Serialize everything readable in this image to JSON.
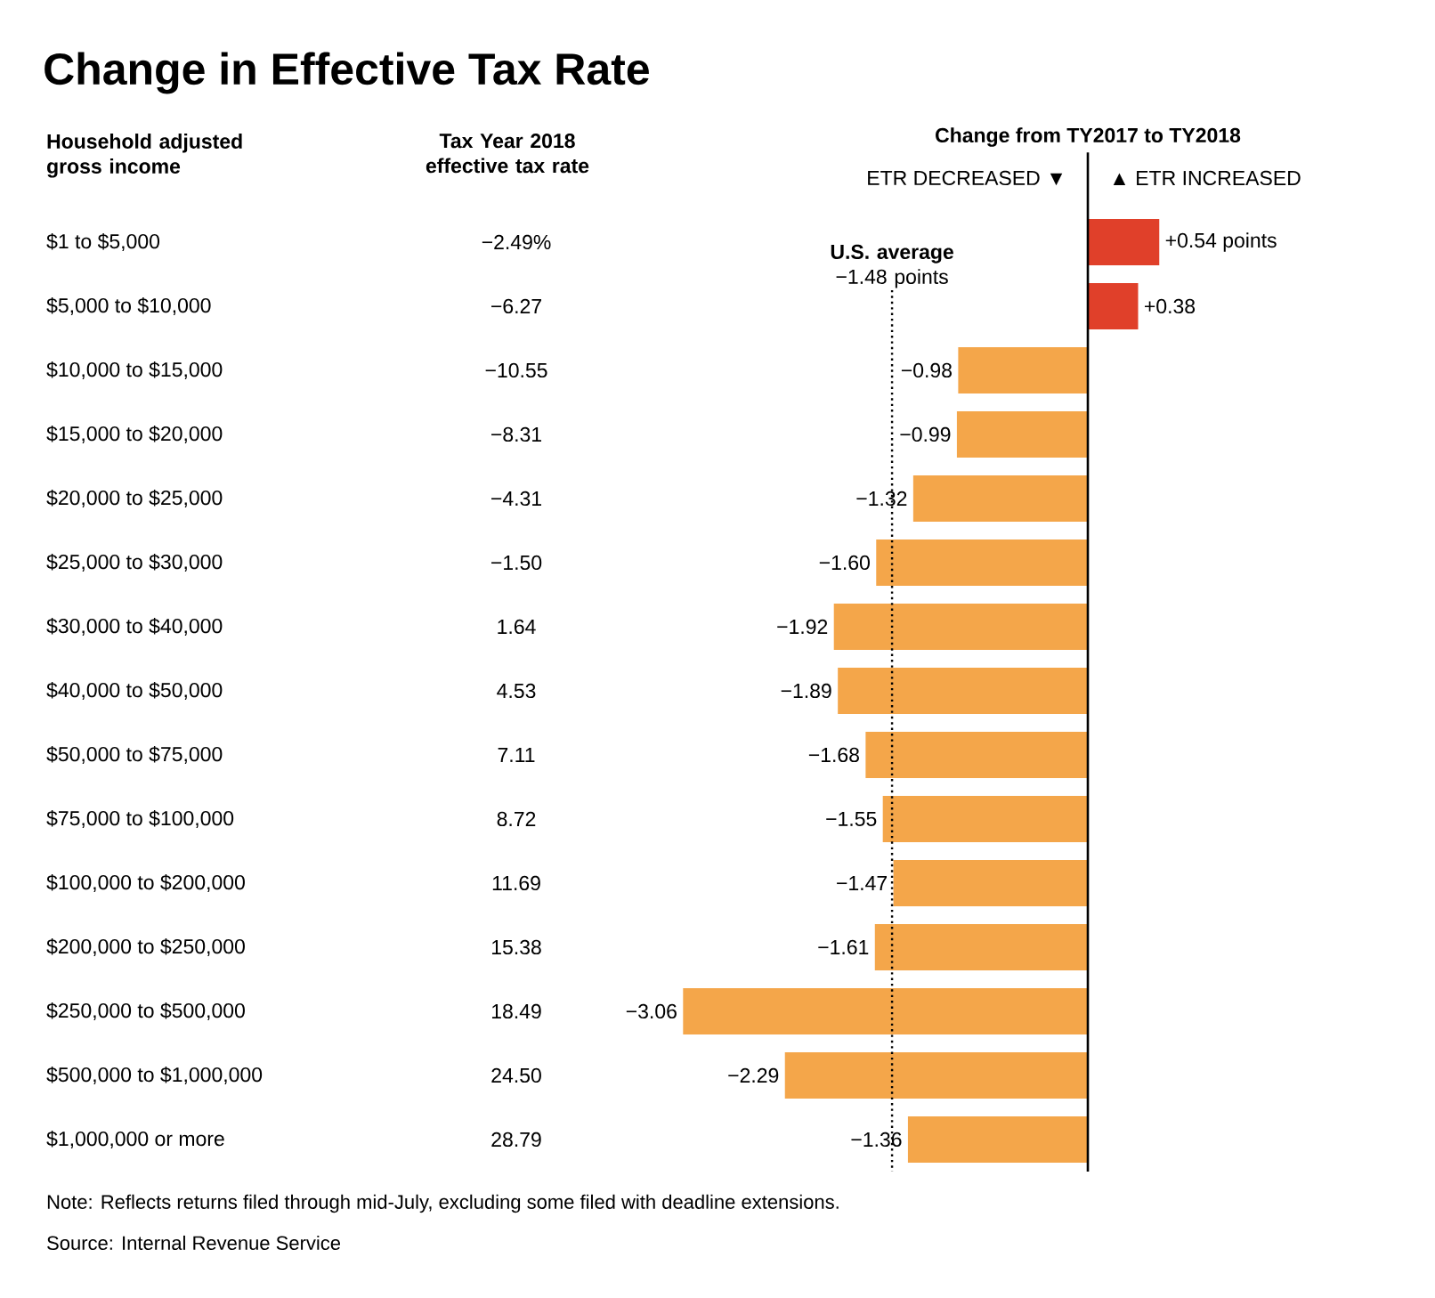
{
  "chart_data": {
    "type": "bar",
    "orientation": "horizontal",
    "title": "Change in Effective Tax Rate",
    "ylabel": "Household adjusted gross income",
    "xlabel": "Change from TY2017 to TY2018",
    "categories": [
      "$1 to $5,000",
      "$5,000 to $10,000",
      "$10,000 to $15,000",
      "$15,000 to $20,000",
      "$20,000 to $25,000",
      "$25,000 to $30,000",
      "$30,000 to $40,000",
      "$40,000 to $50,000",
      "$50,000 to $75,000",
      "$75,000 to $100,000",
      "$100,000 to $200,000",
      "$200,000 to $250,000",
      "$250,000 to $500,000",
      "$500,000 to $1,000,000",
      "$1,000,000 or more"
    ],
    "values": [
      0.54,
      0.38,
      -0.98,
      -0.99,
      -1.32,
      -1.6,
      -1.92,
      -1.89,
      -1.68,
      -1.55,
      -1.47,
      -1.61,
      -3.06,
      -2.29,
      -1.36
    ],
    "colors": [
      "#e0402a",
      "#e0402a",
      "#f4a64a",
      "#f4a64a",
      "#f4a64a",
      "#f4a64a",
      "#f4a64a",
      "#f4a64a",
      "#f4a64a",
      "#f4a64a",
      "#f4a64a",
      "#f4a64a",
      "#f4a64a",
      "#f4a64a",
      "#f4a64a"
    ],
    "value_labels": [
      "+0.54 points",
      "+0.38",
      "−0.98",
      "−0.99",
      "−1.32",
      "−1.60",
      "−1.92",
      "−1.89",
      "−1.68",
      "−1.55",
      "−1.47",
      "−1.61",
      "−3.06",
      "−2.29",
      "−1.36"
    ],
    "tick_labels": "y",
    "ref_lines": [
      {
        "axis": "x",
        "value": -1.48,
        "label": "**U.S. average** −1.48 points",
        "color": "#000000",
        "line_style": "dotted"
      }
    ],
    "annotations": [
      "Tax Year 2018 effective tax rate",
      "ETR DECREASED ▼",
      "▲ ETR INCREASED",
      "−2.49%",
      "−6.27",
      "−10.55",
      "−8.31",
      "−4.31",
      "−1.50",
      "1.64",
      "4.53",
      "7.11",
      "8.72",
      "11.69",
      "15.38",
      "18.49",
      "24.50",
      "28.79",
      "Note: Reflects returns filed through mid-July, excluding some filed with deadline extensions.",
      "Source: Internal Revenue Service"
    ]
  }
}
